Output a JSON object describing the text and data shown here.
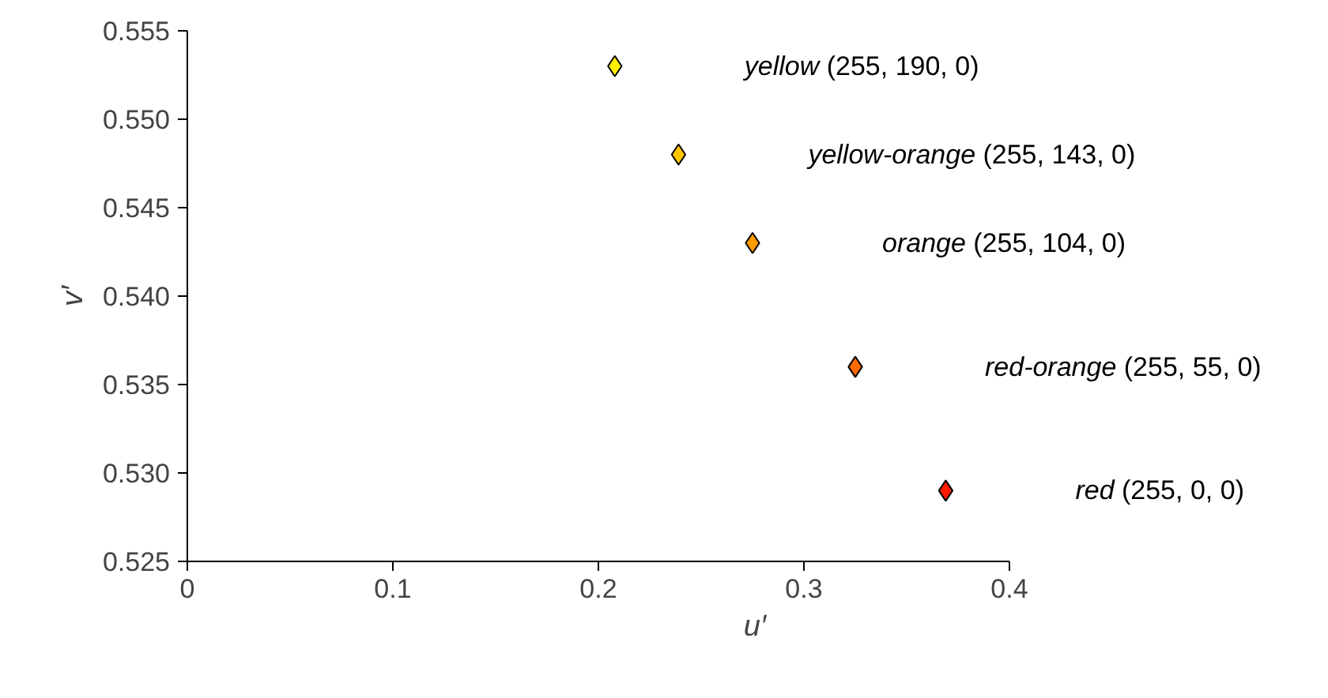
{
  "chart_data": {
    "type": "scatter",
    "xlabel": "u′",
    "ylabel": "v′",
    "x": [
      0.208,
      0.239,
      0.275,
      0.325,
      0.369
    ],
    "values": [
      0.553,
      0.548,
      0.543,
      0.536,
      0.529
    ],
    "colors": [
      "#ffee00",
      "#ffc400",
      "#ff9a00",
      "#ff6a00",
      "#ff1a00"
    ],
    "marker": "diamond",
    "xlim": [
      0,
      0.4
    ],
    "ylim": [
      0.525,
      0.555
    ],
    "xticks": [
      0,
      0.1,
      0.2,
      0.3,
      0.4
    ],
    "yticks": [
      {
        "value": 0.525,
        "label": "0.525"
      },
      {
        "value": 0.53,
        "label": "0.530"
      },
      {
        "value": 0.535,
        "label": "0.535"
      },
      {
        "value": 0.54,
        "label": "0.540"
      },
      {
        "value": 0.545,
        "label": "0.545"
      },
      {
        "value": 0.55,
        "label": "0.550"
      },
      {
        "value": 0.555,
        "label": "0.555"
      }
    ],
    "value_labels": [
      "yellow (255, 190, 0)",
      "yellow-orange (255, 143, 0)",
      "orange (255, 104, 0)",
      "red-orange (255, 55, 0)",
      "red (255, 0, 0)"
    ]
  }
}
